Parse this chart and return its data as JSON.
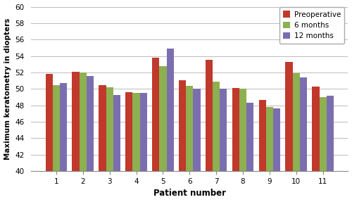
{
  "patients": [
    1,
    2,
    3,
    4,
    5,
    6,
    7,
    8,
    9,
    10,
    11
  ],
  "preoperative": [
    51.8,
    52.1,
    50.5,
    49.6,
    53.8,
    51.1,
    53.5,
    50.1,
    48.7,
    53.3,
    50.3
  ],
  "six_months": [
    50.5,
    52.0,
    50.2,
    49.5,
    52.8,
    50.4,
    50.9,
    50.0,
    47.8,
    51.9,
    49.0
  ],
  "twelve_months": [
    50.7,
    51.6,
    49.3,
    49.5,
    54.9,
    50.0,
    50.0,
    48.3,
    47.6,
    51.4,
    49.2
  ],
  "bar_colors": [
    "#c0392b",
    "#8db050",
    "#7b6eb0"
  ],
  "legend_labels": [
    "Preoperative",
    "6 months",
    "12 months"
  ],
  "xlabel": "Patient number",
  "ylabel": "Maximum keratometry in diopters",
  "ylim": [
    40,
    60
  ],
  "yticks": [
    40,
    42,
    44,
    46,
    48,
    50,
    52,
    54,
    56,
    58,
    60
  ],
  "bar_width": 0.27,
  "background_color": "#ffffff",
  "grid_color": "#bbbbbb"
}
